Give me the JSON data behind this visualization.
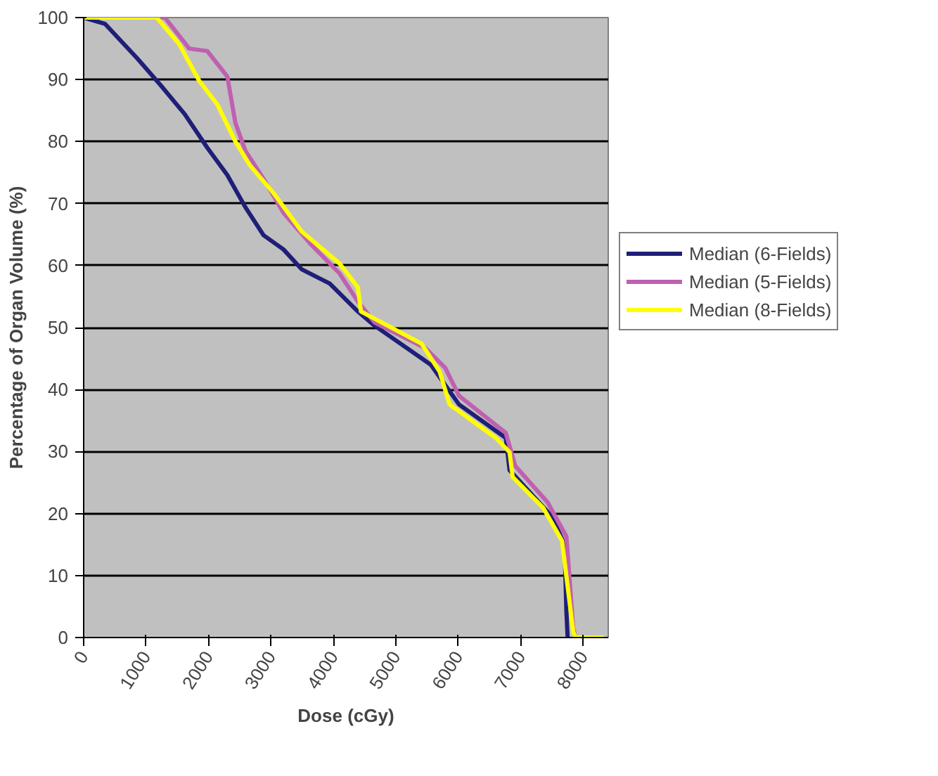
{
  "chart_data": {
    "type": "line",
    "xlabel": "Dose (cGy)",
    "ylabel": "Percentage of Organ Volume (%)",
    "xlim": [
      0,
      8400
    ],
    "ylim": [
      0,
      100
    ],
    "xticks": [
      0,
      1000,
      2000,
      3000,
      4000,
      5000,
      6000,
      7000,
      8000
    ],
    "yticks": [
      0,
      10,
      20,
      30,
      40,
      50,
      60,
      70,
      80,
      90,
      100
    ],
    "grid": "y",
    "legend": "right",
    "marker": "none",
    "line_style": "solid",
    "series": [
      {
        "name": "Median (6-Fields)",
        "color": "#1f1f78",
        "x": [
          0,
          340,
          860,
          1240,
          1620,
          1980,
          2300,
          2590,
          2880,
          3200,
          3490,
          3940,
          4390,
          4660,
          5560,
          6010,
          6760,
          6820,
          7500,
          7700,
          7730,
          7750
        ],
        "values": [
          100,
          99,
          93.4,
          89,
          84.4,
          79,
          74.6,
          69.4,
          64.9,
          62.6,
          59.4,
          57.1,
          52.6,
          50.3,
          44,
          37.6,
          32.2,
          27,
          19.5,
          15,
          4.3,
          0
        ]
      },
      {
        "name": "Median (5-Fields)",
        "color": "#c060b0",
        "x": [
          0,
          1300,
          1690,
          1980,
          2300,
          2430,
          2590,
          2880,
          3200,
          3650,
          4100,
          4390,
          4660,
          5470,
          5790,
          6010,
          6760,
          6910,
          7430,
          7730,
          7840,
          7880
        ],
        "values": [
          100,
          100,
          95,
          94.6,
          90.5,
          83,
          78.5,
          74,
          68.5,
          63.3,
          58.7,
          54.2,
          50.8,
          46.7,
          43.5,
          39,
          33,
          27.7,
          21.8,
          16.3,
          1.4,
          0
        ]
      },
      {
        "name": "Median (8-Fields)",
        "color": "#ffff00",
        "x": [
          0,
          1170,
          1530,
          1850,
          2140,
          2430,
          2660,
          3040,
          3490,
          4100,
          4390,
          4440,
          5410,
          5700,
          5860,
          6600,
          6820,
          6870,
          7360,
          7660,
          7840,
          7880,
          8330
        ],
        "values": [
          100,
          100,
          95.7,
          89.8,
          86,
          80,
          76.2,
          71.7,
          65.5,
          60.3,
          56.5,
          52.6,
          47.4,
          42.9,
          37.6,
          32.2,
          29.9,
          25.9,
          20.9,
          15.6,
          0.9,
          0,
          0
        ]
      }
    ]
  }
}
